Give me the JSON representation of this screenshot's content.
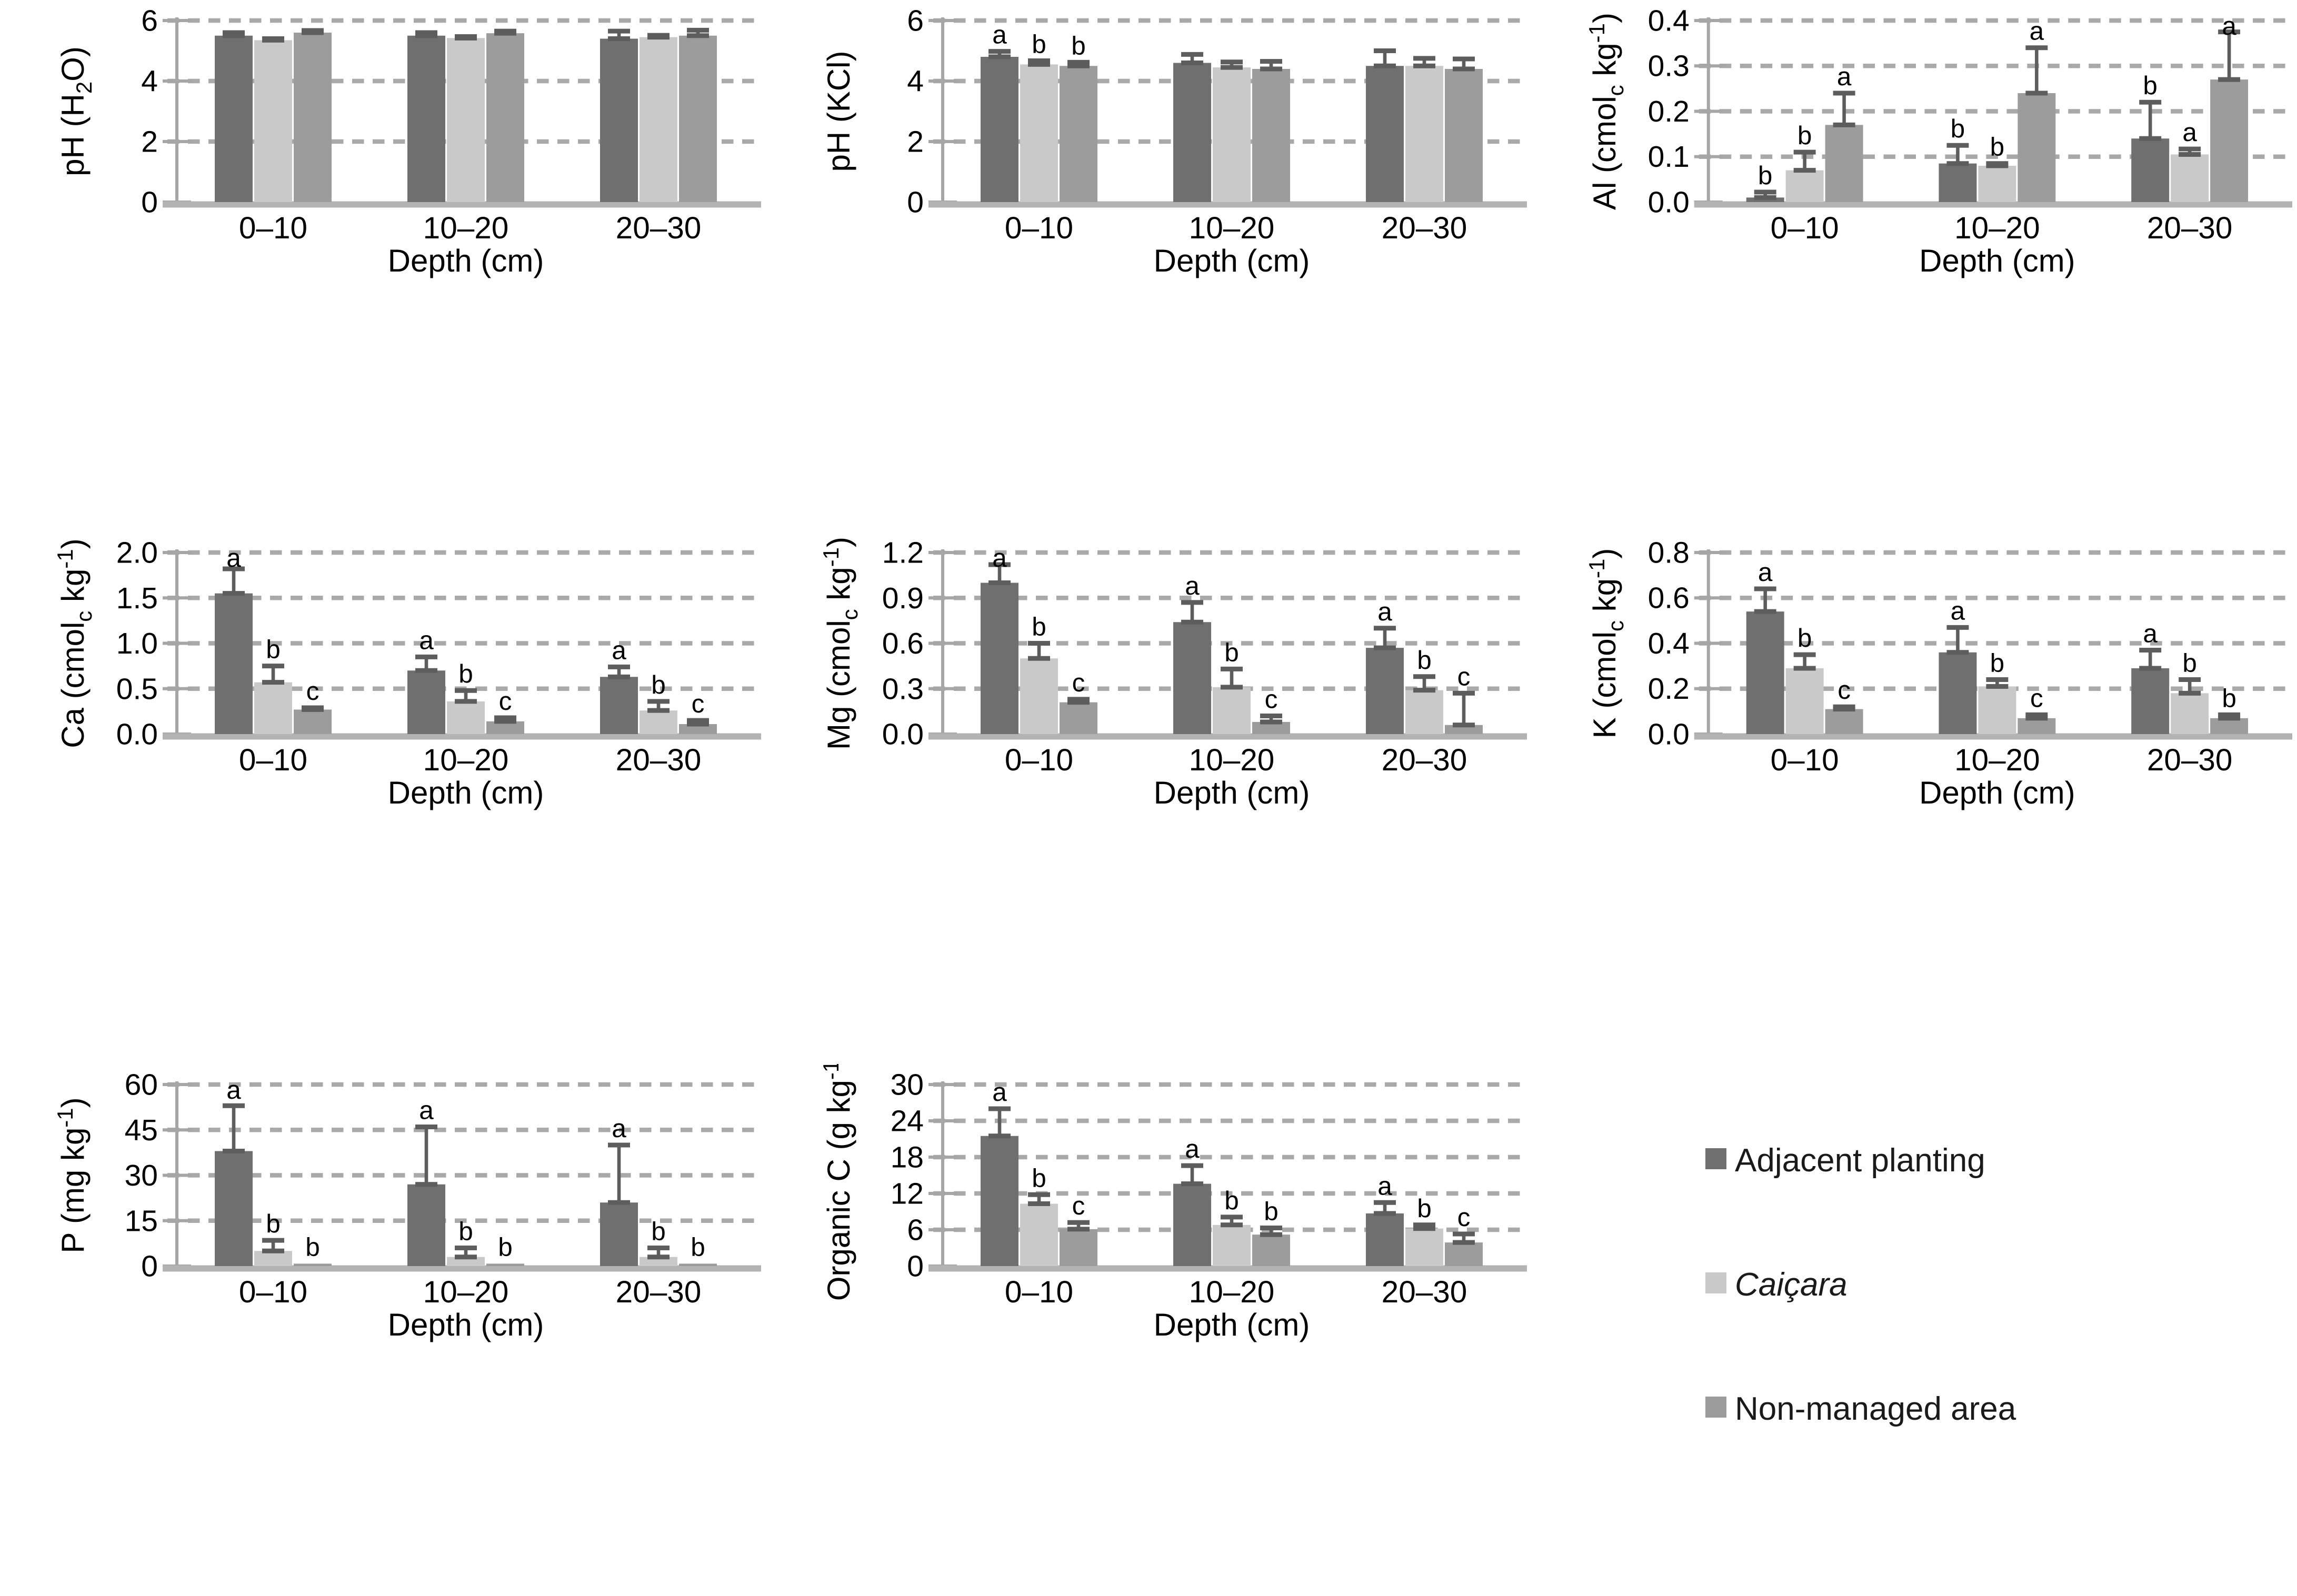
{
  "figure": {
    "description": "Soil chemical properties by depth under three management areas",
    "xlabel": "Depth (cm)",
    "categories": [
      "0–10",
      "10–20",
      "20–30"
    ]
  },
  "legend": {
    "position": "bottom-right",
    "items": [
      {
        "label": "Adjacent planting",
        "color": "#6f6f6f",
        "italic": false
      },
      {
        "label": "Caiçara",
        "color": "#c9c9c9",
        "italic": true
      },
      {
        "label": "Non-managed area",
        "color": "#9c9c9c",
        "italic": false
      }
    ]
  },
  "style_colors": {
    "gridline": "#a9a9a9",
    "axis": "#a6a6a6",
    "baseline": "#b3b3b3",
    "error_bar": "#5d5d5d",
    "text": "#000000"
  },
  "chart_data": [
    {
      "id": "ph_h2o",
      "type": "bar",
      "grid": true,
      "legend_shown": false,
      "ylabel_text": "pH (H2O)",
      "ylabel_parts": [
        {
          "t": "pH (H"
        },
        {
          "t": "2",
          "shift": "sub"
        },
        {
          "t": "O)"
        }
      ],
      "ylim": [
        0,
        6
      ],
      "yticks": [
        0,
        2,
        4,
        6
      ],
      "ytick_labels": [
        "0",
        "2",
        "4",
        "6"
      ],
      "categories": [
        "0–10",
        "10–20",
        "20–30"
      ],
      "xlabel": "Depth (cm)",
      "series": [
        {
          "name": "Adjacent planting",
          "values": [
            5.5,
            5.5,
            5.4
          ],
          "errors": [
            0.1,
            0.1,
            0.25
          ],
          "letters": [
            "",
            "",
            ""
          ]
        },
        {
          "name": "Caiçara",
          "values": [
            5.35,
            5.42,
            5.45
          ],
          "errors": [
            0.05,
            0.05,
            0.06
          ],
          "letters": [
            "",
            "",
            ""
          ]
        },
        {
          "name": "Non-managed area",
          "values": [
            5.6,
            5.58,
            5.5
          ],
          "errors": [
            0.07,
            0.07,
            0.18
          ],
          "letters": [
            "",
            "",
            ""
          ]
        }
      ]
    },
    {
      "id": "ph_kcl",
      "type": "bar",
      "grid": true,
      "legend_shown": false,
      "ylabel_text": "pH (KCl)",
      "ylabel_parts": [
        {
          "t": "pH (KCl)"
        }
      ],
      "ylim": [
        0,
        6
      ],
      "yticks": [
        0,
        2,
        4,
        6
      ],
      "ytick_labels": [
        "0",
        "2",
        "4",
        "6"
      ],
      "categories": [
        "0–10",
        "10–20",
        "20–30"
      ],
      "xlabel": "Depth (cm)",
      "series": [
        {
          "name": "Adjacent planting",
          "values": [
            4.8,
            4.6,
            4.5
          ],
          "errors": [
            0.18,
            0.28,
            0.5
          ],
          "letters": [
            "a",
            "",
            ""
          ]
        },
        {
          "name": "Caiçara",
          "values": [
            4.55,
            4.45,
            4.5
          ],
          "errors": [
            0.12,
            0.18,
            0.25
          ],
          "letters": [
            "b",
            "",
            ""
          ]
        },
        {
          "name": "Non-managed area",
          "values": [
            4.5,
            4.4,
            4.4
          ],
          "errors": [
            0.12,
            0.25,
            0.33
          ],
          "letters": [
            "b",
            "",
            ""
          ]
        }
      ]
    },
    {
      "id": "al",
      "type": "bar",
      "grid": true,
      "legend_shown": false,
      "ylabel_text": "Al (cmolc kg-1)",
      "ylabel_parts": [
        {
          "t": "Al (cmol"
        },
        {
          "t": "c",
          "shift": "sub"
        },
        {
          "t": " kg"
        },
        {
          "t": "-1",
          "shift": "sup"
        },
        {
          "t": ")"
        }
      ],
      "ylim": [
        0,
        0.4
      ],
      "yticks": [
        0,
        0.1,
        0.2,
        0.3,
        0.4
      ],
      "ytick_labels": [
        "0.0",
        "0.1",
        "0.2",
        "0.3",
        "0.4"
      ],
      "categories": [
        "0–10",
        "10–20",
        "20–30"
      ],
      "xlabel": "Depth (cm)",
      "series": [
        {
          "name": "Adjacent planting",
          "values": [
            0.01,
            0.085,
            0.14
          ],
          "errors": [
            0.012,
            0.04,
            0.08
          ],
          "letters": [
            "b",
            "b",
            "b"
          ]
        },
        {
          "name": "Caiçara",
          "values": [
            0.07,
            0.08,
            0.105
          ],
          "errors": [
            0.04,
            0.005,
            0.012
          ],
          "letters": [
            "b",
            "b",
            "a"
          ]
        },
        {
          "name": "Non-managed area",
          "values": [
            0.17,
            0.24,
            0.27
          ],
          "errors": [
            0.07,
            0.1,
            0.105
          ],
          "letters": [
            "a",
            "a",
            "a"
          ]
        }
      ]
    },
    {
      "id": "ca",
      "type": "bar",
      "grid": true,
      "legend_shown": false,
      "ylabel_text": "Ca (cmolc kg-1)",
      "ylabel_parts": [
        {
          "t": "Ca (cmol"
        },
        {
          "t": "c",
          "shift": "sub"
        },
        {
          "t": " kg"
        },
        {
          "t": "-1",
          "shift": "sup"
        },
        {
          "t": ")"
        }
      ],
      "ylim": [
        0,
        2.0
      ],
      "yticks": [
        0,
        0.5,
        1.0,
        1.5,
        2.0
      ],
      "ytick_labels": [
        "0.0",
        "0.5",
        "1.0",
        "1.5",
        "2.0"
      ],
      "categories": [
        "0–10",
        "10–20",
        "20–30"
      ],
      "xlabel": "Depth (cm)",
      "series": [
        {
          "name": "Adjacent planting",
          "values": [
            1.55,
            0.7,
            0.63
          ],
          "errors": [
            0.27,
            0.15,
            0.11
          ],
          "letters": [
            "a",
            "a",
            "a"
          ]
        },
        {
          "name": "Caiçara",
          "values": [
            0.57,
            0.36,
            0.26
          ],
          "errors": [
            0.18,
            0.12,
            0.1
          ],
          "letters": [
            "b",
            "b",
            "b"
          ]
        },
        {
          "name": "Non-managed area",
          "values": [
            0.27,
            0.14,
            0.11
          ],
          "errors": [
            0.02,
            0.04,
            0.04
          ],
          "letters": [
            "c",
            "c",
            "c"
          ]
        }
      ]
    },
    {
      "id": "mg",
      "type": "bar",
      "grid": true,
      "legend_shown": false,
      "ylabel_text": "Mg (cmolc kg-1)",
      "ylabel_parts": [
        {
          "t": "Mg (cmol"
        },
        {
          "t": "c",
          "shift": "sub"
        },
        {
          "t": " kg"
        },
        {
          "t": "-1",
          "shift": "sup"
        },
        {
          "t": ")"
        }
      ],
      "ylim": [
        0,
        1.2
      ],
      "yticks": [
        0,
        0.3,
        0.6,
        0.9,
        1.2
      ],
      "ytick_labels": [
        "0.0",
        "0.3",
        "0.6",
        "0.9",
        "1.2"
      ],
      "categories": [
        "0–10",
        "10–20",
        "20–30"
      ],
      "xlabel": "Depth (cm)",
      "series": [
        {
          "name": "Adjacent planting",
          "values": [
            1.0,
            0.74,
            0.57
          ],
          "errors": [
            0.12,
            0.13,
            0.13
          ],
          "letters": [
            "a",
            "a",
            "a"
          ]
        },
        {
          "name": "Caiçara",
          "values": [
            0.5,
            0.31,
            0.29
          ],
          "errors": [
            0.1,
            0.12,
            0.09
          ],
          "letters": [
            "b",
            "b",
            "b"
          ]
        },
        {
          "name": "Non-managed area",
          "values": [
            0.21,
            0.08,
            0.06
          ],
          "errors": [
            0.02,
            0.04,
            0.21
          ],
          "letters": [
            "c",
            "c",
            "c"
          ]
        }
      ]
    },
    {
      "id": "k",
      "type": "bar",
      "grid": true,
      "legend_shown": false,
      "ylabel_text": "K (cmolc kg-1)",
      "ylabel_parts": [
        {
          "t": "K (cmol"
        },
        {
          "t": "c",
          "shift": "sub"
        },
        {
          "t": " kg"
        },
        {
          "t": "-1",
          "shift": "sup"
        },
        {
          "t": ")"
        }
      ],
      "ylim": [
        0,
        0.8
      ],
      "yticks": [
        0,
        0.2,
        0.4,
        0.6,
        0.8
      ],
      "ytick_labels": [
        "0.0",
        "0.2",
        "0.4",
        "0.6",
        "0.8"
      ],
      "categories": [
        "0–10",
        "10–20",
        "20–30"
      ],
      "xlabel": "Depth (cm)",
      "series": [
        {
          "name": "Adjacent planting",
          "values": [
            0.54,
            0.36,
            0.29
          ],
          "errors": [
            0.1,
            0.11,
            0.08
          ],
          "letters": [
            "a",
            "a",
            "a"
          ]
        },
        {
          "name": "Caiçara",
          "values": [
            0.29,
            0.21,
            0.18
          ],
          "errors": [
            0.06,
            0.03,
            0.06
          ],
          "letters": [
            "b",
            "b",
            "b"
          ]
        },
        {
          "name": "Non-managed area",
          "values": [
            0.11,
            0.07,
            0.07
          ],
          "errors": [
            0.01,
            0.015,
            0.015
          ],
          "letters": [
            "c",
            "c",
            "b"
          ]
        }
      ]
    },
    {
      "id": "p",
      "type": "bar",
      "grid": true,
      "legend_shown": false,
      "ylabel_text": "P (mg kg-1)",
      "ylabel_parts": [
        {
          "t": "P (mg kg"
        },
        {
          "t": "-1",
          "shift": "sup"
        },
        {
          "t": ")"
        }
      ],
      "ylim": [
        0,
        60
      ],
      "yticks": [
        0,
        15,
        30,
        45,
        60
      ],
      "ytick_labels": [
        "0",
        "15",
        "30",
        "45",
        "60"
      ],
      "categories": [
        "0–10",
        "10–20",
        "20–30"
      ],
      "xlabel": "Depth (cm)",
      "series": [
        {
          "name": "Adjacent planting",
          "values": [
            38,
            27,
            21
          ],
          "errors": [
            15,
            19,
            19
          ],
          "letters": [
            "a",
            "a",
            "a"
          ]
        },
        {
          "name": "Caiçara",
          "values": [
            5,
            3,
            3
          ],
          "errors": [
            3.5,
            3,
            3
          ],
          "letters": [
            "b",
            "b",
            "b"
          ]
        },
        {
          "name": "Non-managed area",
          "values": [
            0.8,
            0.8,
            0.8
          ],
          "errors": [
            0,
            0,
            0
          ],
          "letters": [
            "b",
            "b",
            "b"
          ]
        }
      ]
    },
    {
      "id": "organic_c",
      "type": "bar",
      "grid": true,
      "legend_shown": false,
      "ylabel_text": "Organic C (g kg-1)",
      "ylabel_parts": [
        {
          "t": "Organic C (g kg"
        },
        {
          "t": "-1",
          "shift": "sup"
        },
        {
          "t": ")"
        }
      ],
      "ylim": [
        0,
        30
      ],
      "yticks": [
        0,
        6,
        12,
        18,
        24,
        30
      ],
      "ytick_labels": [
        "0",
        "6",
        "12",
        "18",
        "24",
        "30"
      ],
      "categories": [
        "0–10",
        "10–20",
        "20–30"
      ],
      "xlabel": "Depth (cm)",
      "series": [
        {
          "name": "Adjacent planting",
          "values": [
            21.5,
            13.6,
            8.7
          ],
          "errors": [
            4.5,
            3.0,
            1.8
          ],
          "letters": [
            "a",
            "a",
            "a"
          ]
        },
        {
          "name": "Caiçara",
          "values": [
            10.3,
            6.8,
            6.2
          ],
          "errors": [
            1.5,
            1.3,
            0.6
          ],
          "letters": [
            "b",
            "b",
            "b"
          ]
        },
        {
          "name": "Non-managed area",
          "values": [
            6.1,
            5.2,
            3.9
          ],
          "errors": [
            1.1,
            1.1,
            1.4
          ],
          "letters": [
            "c",
            "b",
            "c"
          ]
        }
      ]
    }
  ]
}
